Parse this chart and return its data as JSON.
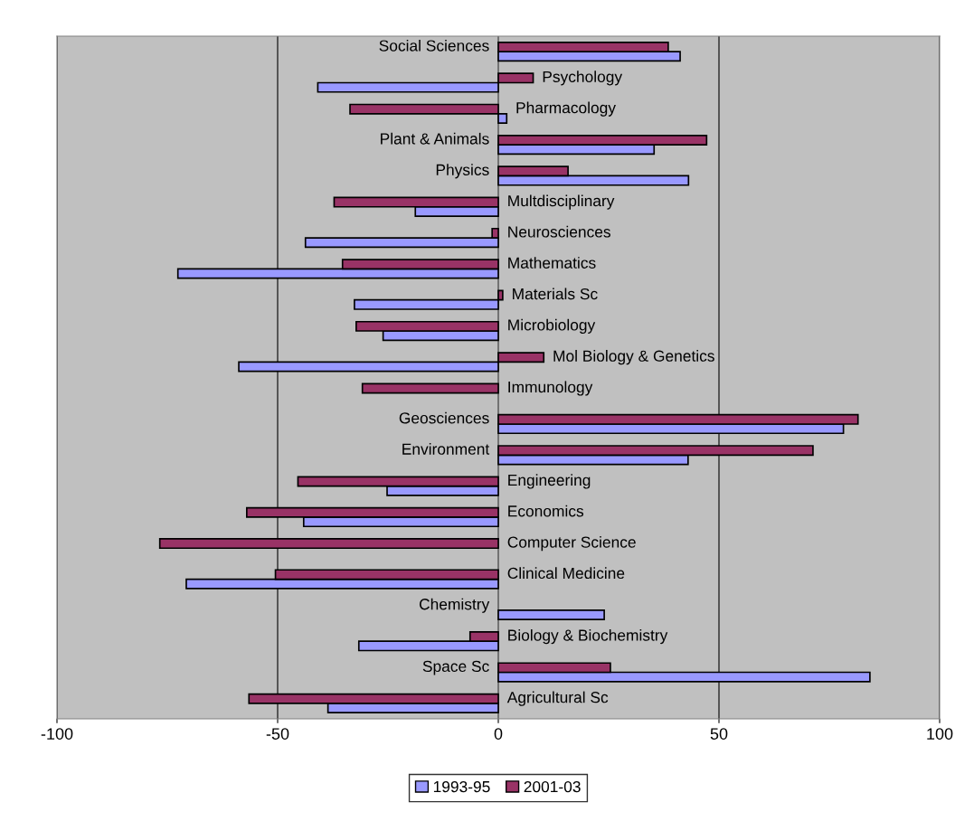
{
  "chart_data": {
    "type": "bar",
    "orientation": "horizontal",
    "categories": [
      "Social Sciences",
      "Psychology",
      "Pharmacology",
      "Plant & Animals",
      "Physics",
      "Multdisciplinary",
      "Neurosciences",
      "Mathematics",
      "Materials Sc",
      "Microbiology",
      "Mol Biology & Genetics",
      "Immunology",
      "Geosciences",
      "Environment",
      "Engineering",
      "Economics",
      "Computer Science",
      "Clinical Medicine",
      "Chemistry",
      "Biology & Biochemistry",
      "Space Sc",
      "Agricultural Sc"
    ],
    "series": [
      {
        "name": "1993-95",
        "color": "#9999ff",
        "values": [
          41.2,
          -40.9,
          1.9,
          35.3,
          43.1,
          -18.8,
          -43.7,
          -72.6,
          -32.6,
          -26.1,
          -58.8,
          null,
          78.2,
          43.0,
          -25.2,
          -44.1,
          null,
          -70.7,
          24.0,
          -31.6,
          84.2,
          -38.6
        ]
      },
      {
        "name": "2001-03",
        "color": "#993366",
        "values": [
          38.5,
          7.9,
          -33.6,
          47.2,
          15.8,
          -37.2,
          -1.4,
          -35.3,
          1.0,
          -32.2,
          10.3,
          -30.8,
          81.5,
          71.3,
          -45.4,
          -57.0,
          -76.7,
          -50.5,
          null,
          -6.4,
          25.4,
          -56.5
        ]
      }
    ],
    "xlim": [
      -100,
      100
    ],
    "xticks": [
      -100,
      -50,
      0,
      50,
      100
    ],
    "grid": "x",
    "legend": "bottom"
  }
}
